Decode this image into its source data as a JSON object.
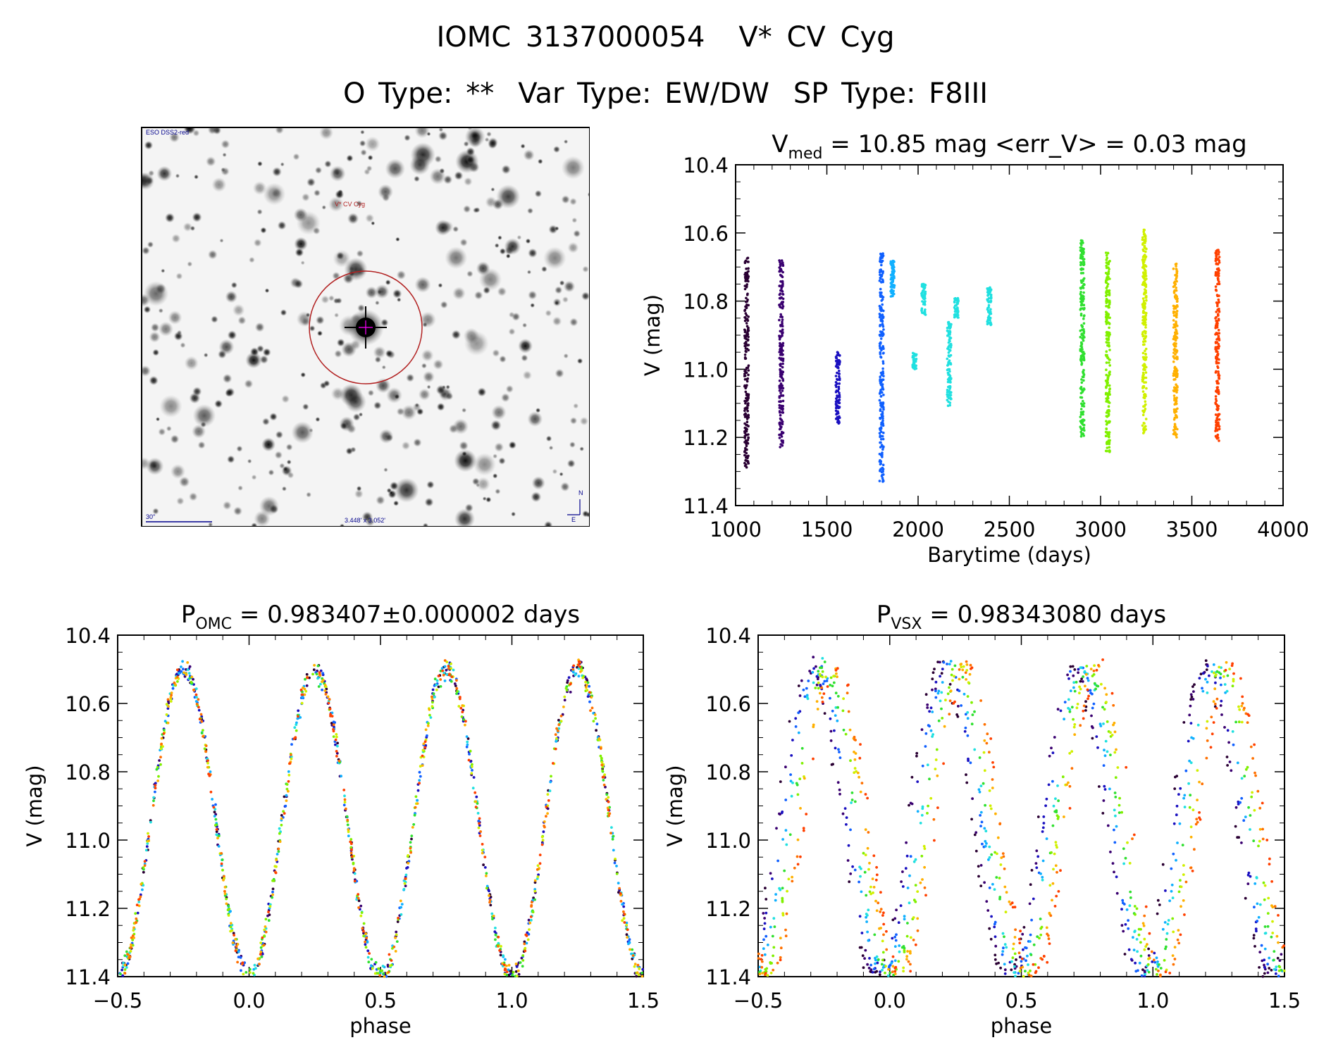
{
  "header": {
    "id": "IOMC 3137000054",
    "name": "V* CV Cyg",
    "otype": "O Type: **",
    "vartype": "Var Type: EW/DW",
    "sptype": "SP Type: F8III"
  },
  "finder": {
    "survey": "ESO DSS2-red",
    "target_label": "V* CV Cyg",
    "scale_label": "30\"",
    "fov_label": "3.448' x 3.052'",
    "north": "N",
    "east": "E"
  },
  "colors": {
    "palette": [
      "#2a0033",
      "#3a0070",
      "#1a10c0",
      "#1060ff",
      "#10b0ff",
      "#20e0e0",
      "#30e030",
      "#80f000",
      "#d0f000",
      "#ffb000",
      "#ff7000",
      "#ff4000"
    ],
    "target_circle": "#b22222"
  },
  "chart_data": [
    {
      "type": "scatter",
      "title_main": "V",
      "title_sub": "med",
      "title_rest": " = 10.85 mag <err_V> = 0.03 mag",
      "xlabel": "Barytime (days)",
      "ylabel": "V (mag)",
      "xlim": [
        1000,
        4000
      ],
      "ylim": [
        11.4,
        10.4
      ],
      "xticks": [
        "1000",
        "1500",
        "2000",
        "2500",
        "3000",
        "3500",
        "4000"
      ],
      "yticks": [
        "10.4",
        "10.6",
        "10.8",
        "11.0",
        "11.2",
        "11.4"
      ],
      "groups": [
        {
          "x": 1060,
          "color": 0,
          "ymin": 10.67,
          "ymax": 11.29
        },
        {
          "x": 1250,
          "color": 1,
          "ymin": 10.68,
          "ymax": 11.23
        },
        {
          "x": 1560,
          "color": 2,
          "ymin": 10.94,
          "ymax": 11.16
        },
        {
          "x": 1800,
          "color": 3,
          "ymin": 10.66,
          "ymax": 11.33
        },
        {
          "x": 1860,
          "color": 4,
          "ymin": 10.68,
          "ymax": 10.79
        },
        {
          "x": 1980,
          "color": 5,
          "ymin": 10.95,
          "ymax": 11.0
        },
        {
          "x": 2030,
          "color": 5,
          "ymin": 10.75,
          "ymax": 10.84
        },
        {
          "x": 2170,
          "color": 5,
          "ymin": 10.86,
          "ymax": 11.11
        },
        {
          "x": 2210,
          "color": 5,
          "ymin": 10.79,
          "ymax": 10.85
        },
        {
          "x": 2390,
          "color": 5,
          "ymin": 10.76,
          "ymax": 10.87
        },
        {
          "x": 2900,
          "color": 6,
          "ymin": 10.62,
          "ymax": 11.2
        },
        {
          "x": 3040,
          "color": 7,
          "ymin": 10.65,
          "ymax": 11.25
        },
        {
          "x": 3240,
          "color": 8,
          "ymin": 10.59,
          "ymax": 11.19
        },
        {
          "x": 3410,
          "color": 9,
          "ymin": 10.69,
          "ymax": 11.2
        },
        {
          "x": 3640,
          "color": 11,
          "ymin": 10.65,
          "ymax": 11.21
        }
      ]
    },
    {
      "type": "scatter",
      "title_main": "P",
      "title_sub": "OMC",
      "title_rest": " = 0.983407±0.000002 days",
      "xlabel": "phase",
      "ylabel": "V (mag)",
      "xlim": [
        -0.5,
        1.5
      ],
      "ylim": [
        11.4,
        10.4
      ],
      "xticks": [
        "−0.5",
        "0.0",
        "0.5",
        "1.0",
        "1.5"
      ],
      "yticks": [
        "10.4",
        "10.6",
        "10.8",
        "11.0",
        "11.2",
        "11.4"
      ],
      "curve": {
        "median": 10.95,
        "amplitude": 0.45,
        "cycles_per_unit": 2,
        "min_phase": 0.0,
        "scatter": 0.03,
        "drift": 0.0
      }
    },
    {
      "type": "scatter",
      "title_main": "P",
      "title_sub": "VSX",
      "title_rest": " = 0.98343080 days",
      "xlabel": "phase",
      "ylabel": "V (mag)",
      "xlim": [
        -0.5,
        1.5
      ],
      "ylim": [
        11.4,
        10.4
      ],
      "xticks": [
        "−0.5",
        "0.0",
        "0.5",
        "1.0",
        "1.5"
      ],
      "yticks": [
        "10.4",
        "10.6",
        "10.8",
        "11.0",
        "11.2",
        "11.4"
      ],
      "curve": {
        "median": 10.95,
        "amplitude": 0.45,
        "cycles_per_unit": 2,
        "min_phase": 0.0,
        "scatter": 0.03,
        "drift": 0.06
      }
    }
  ]
}
